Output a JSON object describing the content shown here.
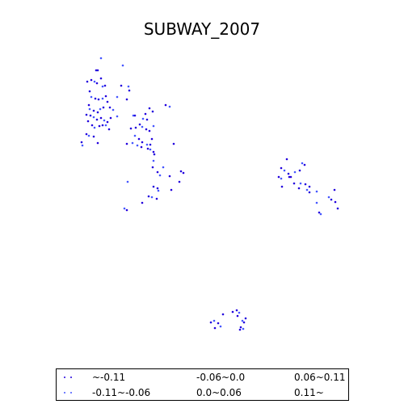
{
  "map": {
    "title": "SUBWAY_2007",
    "colors": {
      "dot_primary": "#2200dd",
      "dot_secondary": "#4455ff",
      "background": "#ffffff"
    }
  },
  "legend": {
    "items": [
      {
        "label": "~-0.11",
        "color": "#2200dd"
      },
      {
        "label": "-0.11~-0.06",
        "color": "#4455ff"
      },
      {
        "label": "-0.06~0.0",
        "color": "#ffffff"
      },
      {
        "label": "0.0~0.06",
        "color": "#ffffff"
      },
      {
        "label": "0.06~0.11",
        "color": "#ffffff"
      },
      {
        "label": "0.11~",
        "color": "#ffffff"
      }
    ]
  }
}
